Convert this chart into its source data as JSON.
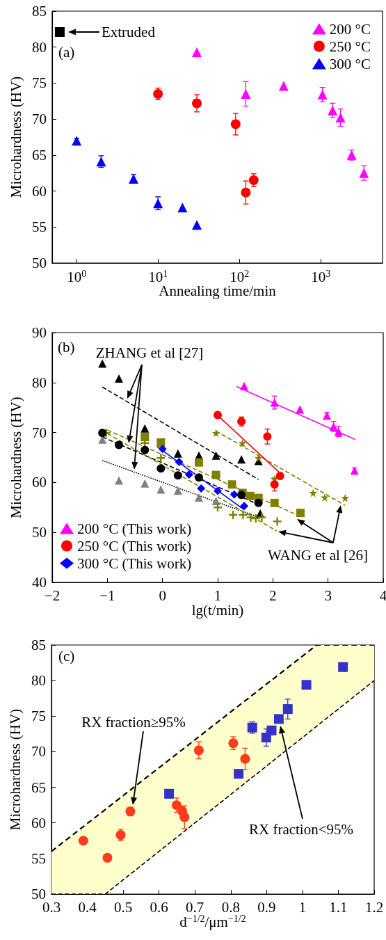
{
  "chart_data": [
    {
      "type": "scatter",
      "xlabel": "Annealing time/min",
      "ylabel": "Microhardness (HV)",
      "log": "x",
      "legend": "top right",
      "xlim": [
        0.5,
        5750
      ],
      "xticks": [
        {
          "value": 1,
          "label": "10$^{0}$"
        },
        {
          "value": 10,
          "label": "10$^{1}$"
        },
        {
          "value": 100,
          "label": "10$^{2}$"
        },
        {
          "value": 1000,
          "label": "10$^{3}$"
        }
      ],
      "ylim": [
        50,
        85
      ],
      "yticks": [
        50,
        55,
        60,
        65,
        70,
        75,
        80,
        85
      ],
      "annotations": [
        "(a)",
        {
          "text": "Extruded",
          "x": 0.62,
          "y": 82.1
        }
      ],
      "series": [
        {
          "name": "200 °C",
          "color": "#ff00ff",
          "marker": "triangle",
          "x": [
            30,
            120,
            350,
            1050,
            1400,
            1750,
            2400,
            3400
          ],
          "values": [
            79.3,
            73.5,
            74.6,
            73.4,
            71.2,
            70.2,
            65.0,
            62.5
          ],
          "errors": [
            null,
            1.7,
            null,
            1.0,
            1.0,
            1.2,
            0.7,
            1.0
          ]
        },
        {
          "name": "250 °C",
          "color": "#ff0000",
          "marker": "circle",
          "x": [
            10,
            30,
            90,
            120,
            150
          ],
          "values": [
            73.5,
            72.2,
            69.3,
            59.8,
            61.5
          ],
          "errors": [
            0.8,
            1.2,
            1.5,
            1.6,
            0.9
          ]
        },
        {
          "name": "300 °C",
          "color": "#0000ff",
          "marker": "triangle",
          "x": [
            1,
            2,
            5,
            10,
            20,
            30
          ],
          "values": [
            67.0,
            64.1,
            61.7,
            58.3,
            57.7,
            55.3
          ],
          "errors": [
            0.3,
            0.8,
            0.6,
            0.9,
            null,
            null
          ]
        },
        {
          "color": "#000000",
          "marker": "square",
          "x": [
            0.62
          ],
          "values": [
            82.1
          ]
        }
      ]
    },
    {
      "type": "scatter",
      "xlabel": "lg(t/min)",
      "ylabel": "Microhardness (HV)",
      "legend": "bottom left",
      "xlim": [
        -2,
        4
      ],
      "xticks": [
        {
          "value": -2,
          "label": "−2"
        },
        {
          "value": -1,
          "label": "−1"
        },
        0,
        1,
        2,
        3,
        4
      ],
      "ylim": [
        40,
        90
      ],
      "yticks": [
        40,
        50,
        60,
        70,
        80,
        90
      ],
      "annotations": [
        "(b)",
        "ZHANG et al [27]",
        "WANG et al [26]"
      ],
      "series": [
        {
          "color": "#000000",
          "type": "line",
          "marker": "none",
          "line_style": "dashed",
          "x": [
            -1.09,
            1.74
          ],
          "values": [
            79.1,
            60.6
          ]
        },
        {
          "color": "#000000",
          "type": "line",
          "marker": "none",
          "line_style": "dashed",
          "x": [
            -1.09,
            1.74
          ],
          "values": [
            69.1,
            55.6
          ]
        },
        {
          "color": "#000000",
          "type": "line",
          "marker": "none",
          "line_style": "dotted",
          "x": [
            -1.09,
            1.78
          ],
          "values": [
            64.4,
            52.9
          ]
        },
        {
          "color": "#808000",
          "type": "line",
          "marker": "none",
          "line_style": "dashed",
          "x": [
            0.97,
            3.31
          ],
          "values": [
            70.3,
            55.4
          ]
        },
        {
          "color": "#808000",
          "type": "line",
          "marker": "none",
          "line_style": "dashed",
          "x": [
            -1.0,
            2.5
          ],
          "values": [
            70.5,
            53.2
          ]
        },
        {
          "color": "#808000",
          "type": "line",
          "marker": "none",
          "line_style": "dashed",
          "x": [
            -1.0,
            2.07
          ],
          "values": [
            69.8,
            50.3
          ]
        },
        {
          "color": "#000000",
          "marker": "triangle",
          "x": [
            -1.09,
            -0.79,
            -0.32,
            0.28,
            0.66,
            0.97,
            1.43,
            1.74,
            1.77
          ],
          "values": [
            83.8,
            80.8,
            70.8,
            65.8,
            65.4,
            65.4,
            64.6,
            64.3,
            53.8
          ]
        },
        {
          "color": "#808080",
          "marker": "triangle",
          "x": [
            -1.09,
            -0.79,
            -0.32,
            -0.03,
            0.28,
            0.66,
            0.97
          ],
          "values": [
            68.6,
            60.4,
            59.8,
            58.6,
            58.4,
            57.0,
            56.3
          ]
        },
        {
          "color": "#808000",
          "marker": "star",
          "x": [
            0.97,
            1.45,
            1.74,
            2.03,
            2.73,
            2.94,
            3.31
          ],
          "values": [
            69.9,
            67.9,
            64.9,
            60.7,
            57.9,
            57.0,
            56.9
          ]
        },
        {
          "color": "#808000",
          "marker": "square",
          "x": [
            -0.32,
            -0.03,
            0.66,
            0.97,
            1.26,
            1.45,
            1.59,
            1.74,
            2.03,
            2.5
          ],
          "values": [
            69.1,
            68.0,
            64.0,
            61.5,
            59.6,
            57.9,
            57.3,
            56.9,
            55.9,
            53.9
          ]
        },
        {
          "color": "#808000",
          "marker": "cross",
          "x": [
            -1.02,
            -0.32,
            -0.03,
            1.0,
            1.28,
            1.46,
            1.6,
            1.69,
            1.8,
            2.08
          ],
          "values": [
            69.9,
            67.9,
            64.9,
            55.0,
            53.5,
            53.5,
            53.0,
            52.8,
            53.0,
            52.2
          ]
        },
        {
          "color": "#000000",
          "marker": "circle",
          "x": [
            -1.09,
            -0.79,
            -0.32,
            -0.03,
            0.28,
            0.66,
            1.0,
            1.43,
            1.74
          ],
          "values": [
            69.9,
            67.5,
            66.5,
            62.8,
            61.4,
            61.0,
            null,
            57.5,
            55.9
          ]
        },
        {
          "color": "#ff00ff",
          "type": "line",
          "marker": "none",
          "line_style": "solid",
          "x": [
            1.34,
            3.49
          ],
          "values": [
            79.2,
            68.6
          ]
        },
        {
          "color": "#ff0000",
          "type": "line",
          "marker": "none",
          "line_style": "solid",
          "x": [
            1.0,
            2.11
          ],
          "values": [
            73.4,
            62.1
          ]
        },
        {
          "color": "#0000ff",
          "type": "line",
          "marker": "none",
          "line_style": "solid",
          "x": [
            -0.1,
            1.47
          ],
          "values": [
            67.2,
            54.6
          ]
        },
        {
          "name": "200 °C (This work)",
          "color": "#ff00ff",
          "marker": "triangle",
          "x": [
            1.48,
            2.03,
            2.49,
            2.98,
            3.1,
            3.19,
            3.48
          ],
          "values": [
            79.3,
            76.0,
            74.6,
            73.4,
            71.2,
            70.2,
            62.4
          ],
          "errors": [
            null,
            1.3,
            null,
            0.6,
            1.0,
            1.0,
            0.5
          ]
        },
        {
          "name": "250 °C (This work)",
          "color": "#ff0000",
          "marker": "circle",
          "x": [
            1.0,
            1.43,
            1.9,
            2.03,
            2.13
          ],
          "values": [
            73.5,
            72.2,
            69.2,
            59.6,
            61.3
          ],
          "errors": [
            null,
            0.9,
            1.5,
            1.3,
            null
          ]
        },
        {
          "name": "300 °C (This work)",
          "color": "#0000ff",
          "marker": "diamond",
          "x": [
            0,
            0.3,
            0.48,
            0.7,
            1.0,
            1.3,
            1.48
          ],
          "values": [
            66.7,
            64.1,
            61.6,
            58.8,
            58.3,
            57.6,
            55.3
          ]
        }
      ]
    },
    {
      "type": "scatter",
      "xlabel": "d$^{−1/2}$/μm$^{−1/2}$",
      "ylabel": "Microhardness (HV)",
      "xlim": [
        0.3,
        1.2
      ],
      "xticks": [
        0.3,
        0.4,
        0.5,
        0.6,
        0.7,
        0.8,
        0.9,
        1.0,
        1.1,
        1.2
      ],
      "ylim": [
        50,
        85
      ],
      "yticks": [
        50,
        55,
        60,
        65,
        70,
        75,
        80,
        85
      ],
      "annotations": [
        "(c)",
        "RX fraction≥95%",
        "RX fraction<95%"
      ],
      "series": [
        {
          "type": "area",
          "color": "#ffffcc",
          "line_style": "dashed",
          "x": [
            0.3,
            1.04,
            1.2
          ],
          "values": [
            56.0,
            85,
            85
          ]
        },
        {
          "type": "line",
          "color": "#000000",
          "line_style": "dashed",
          "marker": "none",
          "x": [
            0.3,
            0.45,
            1.2
          ],
          "values": [
            50,
            50,
            80
          ]
        },
        {
          "color": "#ff3b1a",
          "marker": "circle",
          "x": [
            0.389,
            0.456,
            0.493,
            0.52,
            0.649,
            0.665,
            0.671,
            0.711,
            0.807,
            0.84
          ],
          "values": [
            57.5,
            55.1,
            58.3,
            61.6,
            62.5,
            61.6,
            60.8,
            70.2,
            71.2,
            69.0
          ],
          "errors": [
            null,
            null,
            0.8,
            0.6,
            1.0,
            0.7,
            1.6,
            1.2,
            0.9,
            1.5
          ]
        },
        {
          "color": "#3333cc",
          "marker": "square",
          "x": [
            0.628,
            0.822,
            0.86,
            0.899,
            0.914,
            0.934,
            0.959,
            1.011,
            1.113
          ],
          "values": [
            64.1,
            66.9,
            73.4,
            72.0,
            73.0,
            74.6,
            76.0,
            79.4,
            81.9
          ],
          "errors": [
            0.6,
            null,
            0.8,
            1.2,
            0.6,
            null,
            1.4,
            null,
            0.6
          ]
        }
      ]
    }
  ]
}
